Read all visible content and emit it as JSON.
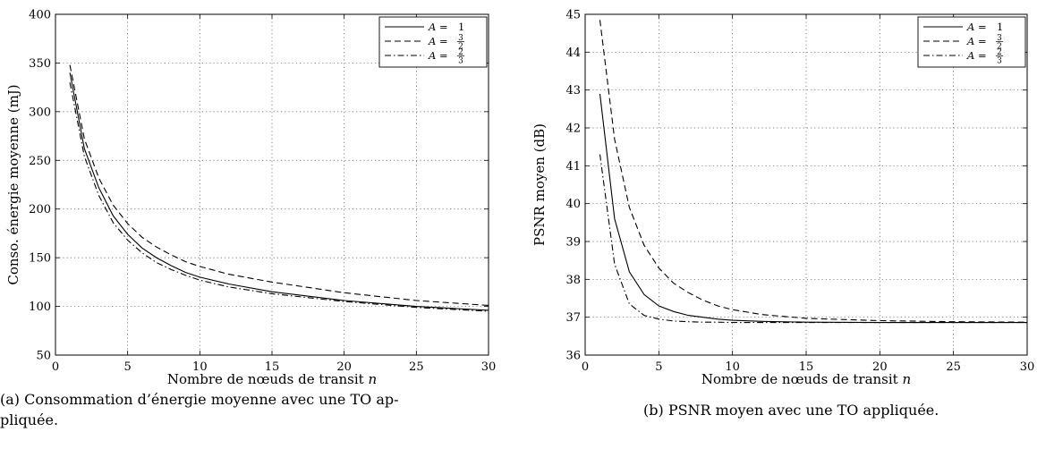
{
  "chart_data": [
    {
      "type": "line",
      "title": "",
      "xlabel": "Nombre de nœuds de transit",
      "xlabel_var": "n",
      "ylabel": "Conso. énergie moyenne (mJ)",
      "xlim": [
        0,
        30
      ],
      "ylim": [
        50,
        400
      ],
      "xticks": [
        0,
        5,
        10,
        15,
        20,
        25,
        30
      ],
      "yticks": [
        50,
        100,
        150,
        200,
        250,
        300,
        350,
        400
      ],
      "grid": true,
      "legend_position": "top-right",
      "x": [
        1,
        2,
        3,
        4,
        5,
        6,
        7,
        8,
        9,
        10,
        12,
        15,
        20,
        25,
        30
      ],
      "series": [
        {
          "name": "A = 1",
          "style": "solid",
          "values": [
            340,
            262,
            222,
            193,
            174,
            160,
            150,
            142,
            135,
            130,
            123,
            115,
            106,
            100,
            96
          ]
        },
        {
          "name": "A = 3/2",
          "style": "dashed",
          "values": [
            348,
            272,
            232,
            204,
            185,
            171,
            161,
            153,
            146,
            141,
            133,
            125,
            114,
            106,
            101
          ]
        },
        {
          "name": "A = 2/3",
          "style": "dashdot",
          "values": [
            330,
            254,
            214,
            186,
            168,
            155,
            145,
            138,
            132,
            127,
            120,
            113,
            105,
            99,
            95
          ]
        }
      ]
    },
    {
      "type": "line",
      "title": "",
      "xlabel": "Nombre de nœuds de transit",
      "xlabel_var": "n",
      "ylabel": "PSNR moyen (dB)",
      "xlim": [
        0,
        30
      ],
      "ylim": [
        36,
        45
      ],
      "xticks": [
        0,
        5,
        10,
        15,
        20,
        25,
        30
      ],
      "yticks": [
        36,
        37,
        38,
        39,
        40,
        41,
        42,
        43,
        44,
        45
      ],
      "grid": true,
      "legend_position": "top-right",
      "x": [
        1,
        2,
        3,
        4,
        5,
        6,
        7,
        8,
        9,
        10,
        12,
        15,
        20,
        25,
        30
      ],
      "series": [
        {
          "name": "A = 1",
          "style": "solid",
          "values": [
            42.9,
            39.6,
            38.2,
            37.6,
            37.3,
            37.15,
            37.05,
            37.0,
            36.95,
            36.92,
            36.89,
            36.87,
            36.86,
            36.86,
            36.86
          ]
        },
        {
          "name": "A = 3/2",
          "style": "dashed",
          "values": [
            44.85,
            41.7,
            39.9,
            38.9,
            38.3,
            37.9,
            37.65,
            37.45,
            37.3,
            37.2,
            37.07,
            36.97,
            36.91,
            36.88,
            36.87
          ]
        },
        {
          "name": "A = 2/3",
          "style": "dashdot",
          "values": [
            41.3,
            38.4,
            37.35,
            37.05,
            36.95,
            36.9,
            36.88,
            36.87,
            36.87,
            36.86,
            36.86,
            36.86,
            36.86,
            36.86,
            36.86
          ]
        }
      ]
    }
  ],
  "legend_labels": [
    {
      "prefix": "A = ",
      "text": "1"
    },
    {
      "prefix": "A = ",
      "num": "3",
      "den": "2"
    },
    {
      "prefix": "A = ",
      "num": "2",
      "den": "3"
    }
  ],
  "captions": {
    "left_line1": "(a) Consommation d’énergie moyenne avec une TO ap-",
    "left_line2": "pliquée.",
    "right": "(b) PSNR moyen avec une TO appliquée."
  }
}
